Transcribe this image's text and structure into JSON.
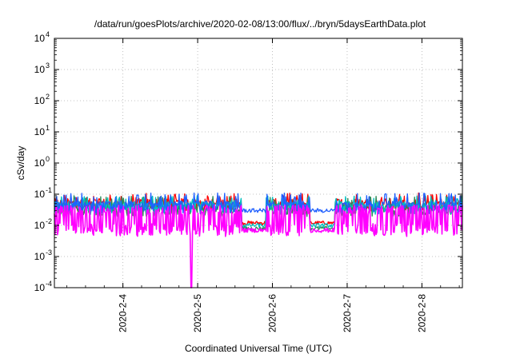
{
  "chart_data": {
    "type": "line",
    "title": "/data/run/goesPlots/archive/2020-02-08/13:00/flux/../bryn/5daysEarthData.plot",
    "xlabel": "Coordinated Universal Time (UTC)",
    "ylabel": "cSv/day",
    "yscale": "log",
    "ylim": [
      0.0001,
      10000
    ],
    "xlim": [
      "2020-02-03 02:00",
      "2020-02-08 13:00"
    ],
    "grid": true,
    "x_ticks": [
      "2020-2-4",
      "2020-2-5",
      "2020-2-6",
      "2020-2-7",
      "2020-2-8"
    ],
    "y_ticks": [
      {
        "value": 0.0001,
        "base": "10",
        "exp": "-4"
      },
      {
        "value": 0.001,
        "base": "10",
        "exp": "-3"
      },
      {
        "value": 0.01,
        "base": "10",
        "exp": "-2"
      },
      {
        "value": 0.1,
        "base": "10",
        "exp": "-1"
      },
      {
        "value": 1,
        "base": "10",
        "exp": "0"
      },
      {
        "value": 10,
        "base": "10",
        "exp": "1"
      },
      {
        "value": 100,
        "base": "10",
        "exp": "2"
      },
      {
        "value": 1000,
        "base": "10",
        "exp": "3"
      },
      {
        "value": 10000,
        "base": "10",
        "exp": "4"
      }
    ],
    "series": [
      {
        "color": "#ff0000",
        "typical": 0.05,
        "spike_max": 0.11,
        "gap_level": 0.012
      },
      {
        "color": "#2e8b57",
        "typical": 0.035,
        "spike_max": 0.09,
        "gap_level": 0.008
      },
      {
        "color": "#00bfbf",
        "typical": 0.04,
        "spike_max": 0.09,
        "gap_level": 0.01
      },
      {
        "color": "#1f5fff",
        "typical": 0.042,
        "spike_max": 0.11,
        "gap_level": 0.03
      },
      {
        "color": "#ff00ff",
        "typical": 0.008,
        "spike_max": 0.045,
        "gap_level": 0.007,
        "dip": {
          "x": "2020-02-04 22:00",
          "value": 0.0001
        }
      }
    ]
  }
}
